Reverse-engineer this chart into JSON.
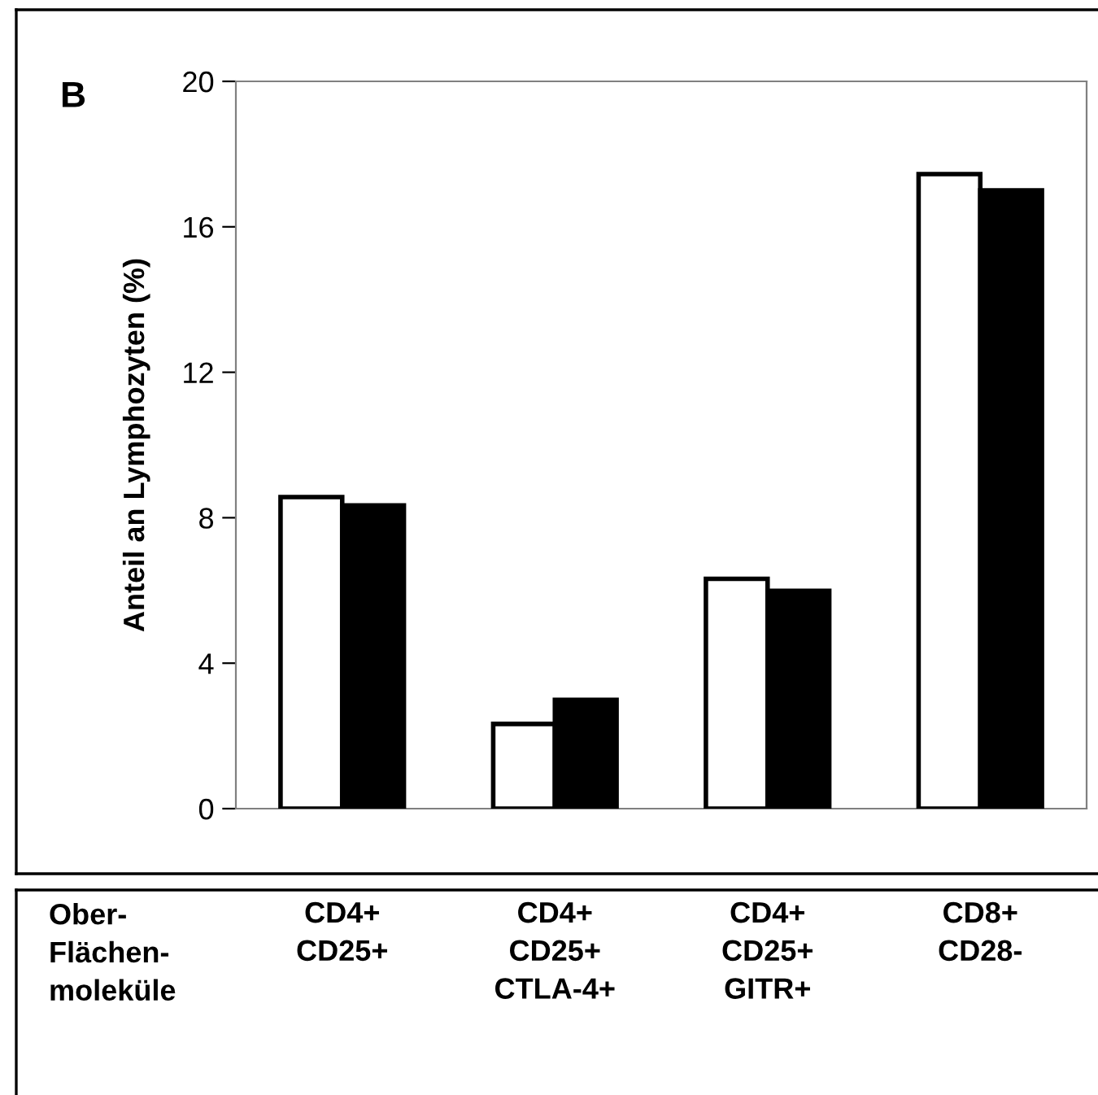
{
  "chart_data": {
    "type": "bar",
    "ylabel": "Anteil an Lymphozyten (%)",
    "annotations": [
      "B",
      "Ober-\nFlächen-\nmoleküle"
    ],
    "categories": [
      "CD4+\nCD25+",
      "CD4+\nCD25+\nCTLA-4+",
      "CD4+\nCD25+\nGITR+",
      "CD8+\nCD28-"
    ],
    "series": [
      {
        "color": "#ffffff",
        "values": [
          8.57,
          2.33,
          6.32,
          17.45
        ]
      },
      {
        "color": "#000000",
        "values": [
          8.34,
          2.99,
          5.99,
          17.0
        ]
      }
    ],
    "ylim": [
      0,
      20
    ],
    "yticks": [
      0,
      4,
      8,
      12,
      16,
      20
    ],
    "grid": false,
    "legend": false
  }
}
